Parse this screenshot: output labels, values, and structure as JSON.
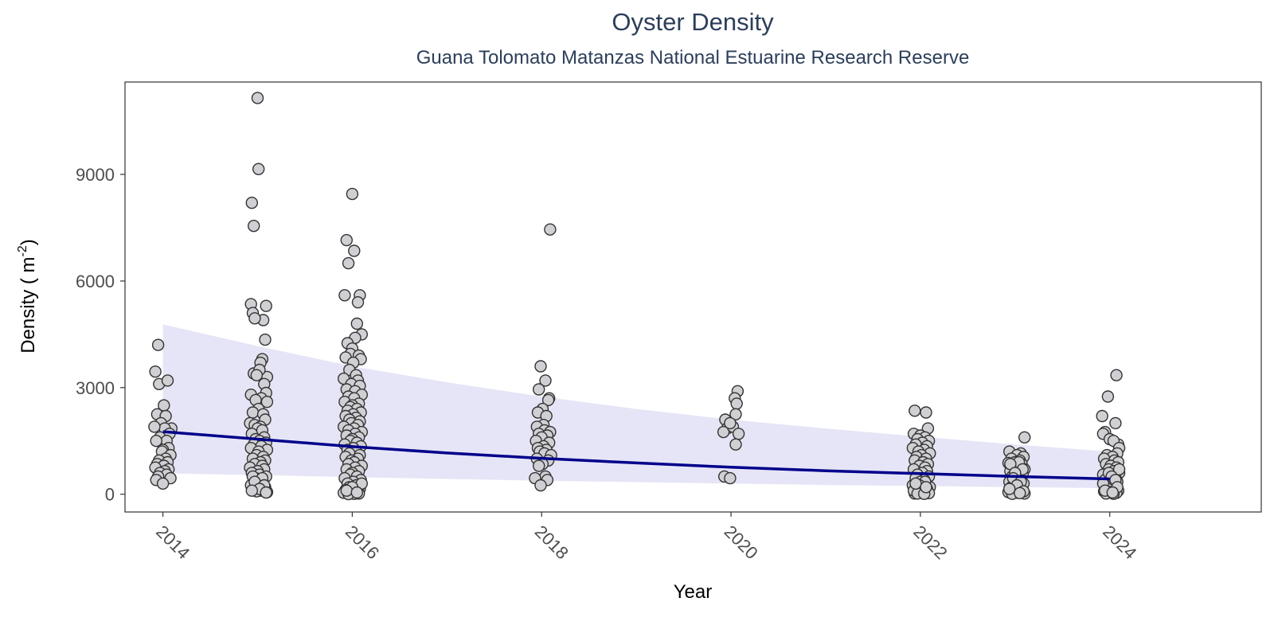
{
  "chart_data": {
    "type": "scatter",
    "title": "Oyster Density",
    "subtitle": "Guana Tolomato Matanzas National Estuarine Research Reserve",
    "xlabel": "Year",
    "ylabel": "Density ( m",
    "ylabel_sup": "-2",
    "ylabel_end": ")",
    "xlim": [
      2013.6,
      2025.6
    ],
    "ylim": [
      -500,
      11600
    ],
    "x_ticks": [
      2014,
      2016,
      2018,
      2020,
      2022,
      2024
    ],
    "x_tick_labels": [
      "2014",
      "2016",
      "2018",
      "2020",
      "2022",
      "2024"
    ],
    "y_ticks": [
      0,
      3000,
      6000,
      9000
    ],
    "y_tick_labels": [
      "0",
      "3000",
      "6000",
      "9000"
    ],
    "grid": false,
    "legend": "none",
    "colors": {
      "point_fill": "#d0d0d4",
      "point_stroke": "#333333",
      "trend_line": "#00008b",
      "ribbon": "#e5e5f7",
      "title": "#2c3e5a",
      "panel_border": "#333333"
    },
    "points": [
      {
        "year": 2014,
        "x": [
          2013.95,
          2013.92,
          2013.96,
          2014.05,
          2014.01,
          2013.94,
          2014.03,
          2013.98,
          2014.09,
          2014.02,
          2013.91,
          2014.07,
          2013.97,
          2014.04,
          2013.93,
          2014.06,
          2014.0,
          2013.99,
          2014.08,
          2014.03,
          2013.96,
          2014.05,
          2013.94,
          2014.01,
          2013.92,
          2014.06,
          2014.02,
          2013.97,
          2014.04,
          2013.95,
          2014.08,
          2013.93,
          2014.0
        ],
        "y": [
          4200,
          3450,
          3100,
          3200,
          2500,
          2250,
          2200,
          2000,
          1850,
          1850,
          1900,
          1700,
          1600,
          1500,
          1500,
          1300,
          1250,
          1200,
          1100,
          1000,
          950,
          900,
          850,
          800,
          750,
          700,
          650,
          600,
          550,
          500,
          450,
          400,
          300
        ]
      },
      {
        "year": 2015,
        "x": [
          2015.0,
          2015.01,
          2014.94,
          2014.96,
          2014.93,
          2014.95,
          2015.09,
          2015.06,
          2015.08,
          2014.97,
          2015.05,
          2015.03,
          2015.1,
          2014.96,
          2015.02,
          2014.99,
          2015.07,
          2015.09,
          2014.93,
          2015.04,
          2014.98,
          2015.1,
          2015.01,
          2014.95,
          2015.06,
          2014.92,
          2015.08,
          2014.97,
          2015.03,
          2015.0,
          2015.05,
          2014.94,
          2015.07,
          2014.98,
          2015.02,
          2015.09,
          2014.96,
          2015.04,
          2014.93,
          2015.1,
          2015.01,
          2014.99,
          2015.06,
          2014.95,
          2015.08,
          2015.03,
          2014.97,
          2015.05,
          2014.92,
          2015.07,
          2015.0,
          2014.94,
          2015.02,
          2015.09,
          2014.98,
          2015.04,
          2014.96,
          2015.06,
          2014.93,
          2015.08,
          2015.01,
          2015.03,
          2014.99,
          2015.1,
          2014.95,
          2015.05,
          2014.97,
          2015.07,
          2015.02,
          2014.94,
          2015.09
        ],
        "y": [
          11150,
          9150,
          8200,
          7550,
          5350,
          5100,
          5300,
          4900,
          4350,
          4950,
          3800,
          3700,
          3300,
          3400,
          3500,
          3350,
          3100,
          2850,
          2800,
          2700,
          2650,
          2600,
          2400,
          2300,
          2250,
          2000,
          2100,
          1950,
          1900,
          1850,
          1800,
          1700,
          1600,
          1550,
          1500,
          1450,
          1400,
          1350,
          1300,
          1250,
          1200,
          1100,
          1050,
          1000,
          950,
          900,
          850,
          800,
          750,
          700,
          650,
          600,
          550,
          500,
          450,
          400,
          350,
          300,
          250,
          200,
          150,
          100,
          80,
          60,
          500,
          450,
          350,
          250,
          150,
          100,
          50
        ]
      },
      {
        "year": 2016,
        "x": [
          2016.0,
          2015.94,
          2016.02,
          2015.96,
          2016.08,
          2015.92,
          2016.06,
          2016.05,
          2016.1,
          2016.03,
          2015.95,
          2016.0,
          2015.98,
          2016.07,
          2015.93,
          2016.09,
          2016.01,
          2015.97,
          2016.04,
          2015.91,
          2016.06,
          2015.99,
          2016.08,
          2015.94,
          2016.03,
          2016.1,
          2015.96,
          2016.02,
          2015.92,
          2016.07,
          2016.0,
          2015.98,
          2016.05,
          2015.95,
          2016.09,
          2016.01,
          2015.93,
          2016.04,
          2015.97,
          2016.08,
          2015.99,
          2016.06,
          2015.91,
          2016.02,
          2015.96,
          2016.1,
          2016.03,
          2015.94,
          2016.07,
          2016.0,
          2015.98,
          2016.05,
          2015.92,
          2016.09,
          2016.01,
          2015.95,
          2016.04,
          2015.97,
          2016.08,
          2015.93,
          2016.06,
          2015.99,
          2016.02,
          2015.96,
          2016.1,
          2016.03,
          2015.94,
          2016.07,
          2016.0,
          2015.98,
          2016.05,
          2015.92,
          2016.09,
          2016.01,
          2015.95,
          2016.04,
          2015.97,
          2016.08,
          2015.93,
          2016.06,
          2015.99,
          2016.03,
          2015.91,
          2016.07,
          2016.02,
          2015.96,
          2016.1,
          2016.0,
          2015.94,
          2016.05
        ],
        "y": [
          8450,
          7150,
          6850,
          6500,
          5600,
          5600,
          5400,
          4800,
          4500,
          4400,
          4250,
          4100,
          3950,
          3900,
          3850,
          3800,
          3700,
          3500,
          3350,
          3250,
          3200,
          3100,
          3050,
          2950,
          2900,
          2800,
          2750,
          2700,
          2600,
          2550,
          2500,
          2450,
          2400,
          2350,
          2300,
          2250,
          2200,
          2150,
          2100,
          2050,
          2000,
          1950,
          1900,
          1850,
          1800,
          1750,
          1700,
          1650,
          1600,
          1550,
          1500,
          1450,
          1400,
          1350,
          1300,
          1250,
          1200,
          1150,
          1100,
          1050,
          1000,
          950,
          900,
          850,
          800,
          750,
          700,
          650,
          600,
          550,
          500,
          450,
          400,
          350,
          300,
          250,
          200,
          150,
          120,
          100,
          80,
          60,
          40,
          20,
          10,
          5,
          300,
          200,
          100,
          50
        ]
      },
      {
        "year": 2018,
        "x": [
          2017.99,
          2018.09,
          2018.04,
          2018.08,
          2017.97,
          2018.07,
          2018.01,
          2017.96,
          2018.05,
          2018.02,
          2017.95,
          2018.03,
          2018.09,
          2017.97,
          2018.06,
          2018.0,
          2017.94,
          2018.08,
          2018.02,
          2017.96,
          2018.05,
          2017.98,
          2018.03,
          2018.1,
          2017.95,
          2018.07,
          2018.01,
          2017.97,
          2018.04,
          2017.93,
          2018.06,
          2017.99
        ],
        "y": [
          3600,
          7450,
          3200,
          2700,
          2950,
          2650,
          2400,
          2300,
          2200,
          1950,
          1900,
          1800,
          1750,
          1700,
          1650,
          1600,
          1500,
          1450,
          1350,
          1300,
          1250,
          1200,
          1150,
          1100,
          1000,
          950,
          850,
          800,
          500,
          450,
          400,
          250
        ]
      },
      {
        "year": 2020,
        "x": [
          2020.07,
          2020.04,
          2020.06,
          2019.94,
          2020.05,
          2019.96,
          2019.92,
          2020.02,
          2020.08,
          2019.99,
          2020.05,
          2019.93,
          2019.99
        ],
        "y": [
          2900,
          2700,
          2550,
          2100,
          2250,
          1850,
          1750,
          1900,
          1700,
          2000,
          1400,
          500,
          450
        ]
      },
      {
        "year": 2022,
        "x": [
          2021.94,
          2022.06,
          2022.08,
          2021.93,
          2022.0,
          2022.05,
          2021.97,
          2022.09,
          2022.02,
          2021.95,
          2022.07,
          2021.92,
          2022.04,
          2021.98,
          2022.1,
          2022.01,
          2021.96,
          2022.06,
          2021.94,
          2022.03,
          2022.08,
          2021.99,
          2022.05,
          2021.93,
          2022.07,
          2022.02,
          2021.97,
          2022.09,
          2021.95,
          2022.04,
          2022.0,
          2022.06,
          2021.92,
          2022.1,
          2021.98,
          2022.03,
          2021.96,
          2022.08,
          2022.01,
          2021.94,
          2022.05,
          2021.99,
          2022.07,
          2021.93,
          2022.02,
          2022.09,
          2021.97,
          2022.04,
          2021.95,
          2022.06
        ],
        "y": [
          2350,
          2300,
          1850,
          1700,
          1650,
          1600,
          1550,
          1500,
          1450,
          1400,
          1350,
          1300,
          1250,
          1200,
          1150,
          1100,
          1050,
          1000,
          950,
          900,
          850,
          800,
          750,
          700,
          650,
          600,
          550,
          500,
          450,
          400,
          350,
          300,
          250,
          200,
          150,
          100,
          80,
          60,
          40,
          20,
          350,
          250,
          150,
          100,
          50,
          30,
          20,
          10,
          300,
          200
        ]
      },
      {
        "year": 2023,
        "x": [
          2023.1,
          2022.94,
          2023.06,
          2023.02,
          2023.09,
          2022.96,
          2023.05,
          2023.0,
          2022.93,
          2023.07,
          2023.03,
          2022.98,
          2023.1,
          2022.95,
          2023.04,
          2023.08,
          2022.97,
          2023.01,
          2023.06,
          2022.94,
          2023.09,
          2023.02,
          2022.96,
          2023.05,
          2022.99,
          2023.07,
          2022.93,
          2023.03,
          2023.1,
          2022.97,
          2023.04,
          2022.95,
          2023.08,
          2023.0,
          2022.98,
          2023.06,
          2023.02,
          2022.94,
          2023.09,
          2023.05
        ],
        "y": [
          1600,
          1200,
          1150,
          1100,
          1050,
          1000,
          950,
          900,
          880,
          850,
          800,
          750,
          700,
          650,
          600,
          550,
          500,
          450,
          400,
          350,
          300,
          250,
          200,
          150,
          100,
          80,
          60,
          40,
          20,
          10,
          900,
          850,
          700,
          600,
          450,
          350,
          250,
          150,
          80,
          30
        ]
      },
      {
        "year": 2024,
        "x": [
          2024.07,
          2023.98,
          2024.06,
          2024.09,
          2023.92,
          2023.95,
          2023.93,
          2024.0,
          2024.04,
          2024.1,
          2024.08,
          2023.97,
          2024.03,
          2023.94,
          2024.05,
          2024.09,
          2023.96,
          2024.01,
          2024.07,
          2023.99,
          2024.04,
          2024.1,
          2023.93,
          2024.02,
          2024.06,
          2023.95,
          2024.08,
          2023.97,
          2024.03,
          2024.05,
          2023.98,
          2024.09,
          2023.94,
          2024.01,
          2024.07,
          2023.96,
          2024.04,
          2024.1,
          2023.99,
          2024.02,
          2024.06,
          2023.93,
          2024.08,
          2023.95,
          2024.03
        ],
        "y": [
          3350,
          2750,
          2000,
          1400,
          2200,
          1750,
          1700,
          1550,
          1500,
          1300,
          1150,
          1100,
          1050,
          1000,
          950,
          900,
          850,
          800,
          750,
          700,
          650,
          600,
          550,
          500,
          450,
          400,
          350,
          300,
          250,
          200,
          150,
          100,
          80,
          60,
          40,
          20,
          10,
          700,
          600,
          500,
          400,
          300,
          200,
          100,
          50
        ]
      }
    ],
    "trend_line": {
      "x": [
        2014,
        2015,
        2016,
        2017,
        2018,
        2019,
        2020,
        2021,
        2022,
        2023,
        2024
      ],
      "y": [
        1760,
        1550,
        1340,
        1160,
        1010,
        880,
        760,
        660,
        580,
        500,
        430
      ]
    },
    "confidence_band": {
      "x": [
        2014,
        2015,
        2016,
        2017,
        2018,
        2019,
        2020,
        2021,
        2022,
        2023,
        2024
      ],
      "lower": [
        590,
        540,
        480,
        430,
        380,
        340,
        300,
        260,
        230,
        200,
        170
      ],
      "upper": [
        4780,
        4170,
        3600,
        3150,
        2750,
        2400,
        2100,
        1850,
        1620,
        1400,
        1200
      ]
    }
  }
}
